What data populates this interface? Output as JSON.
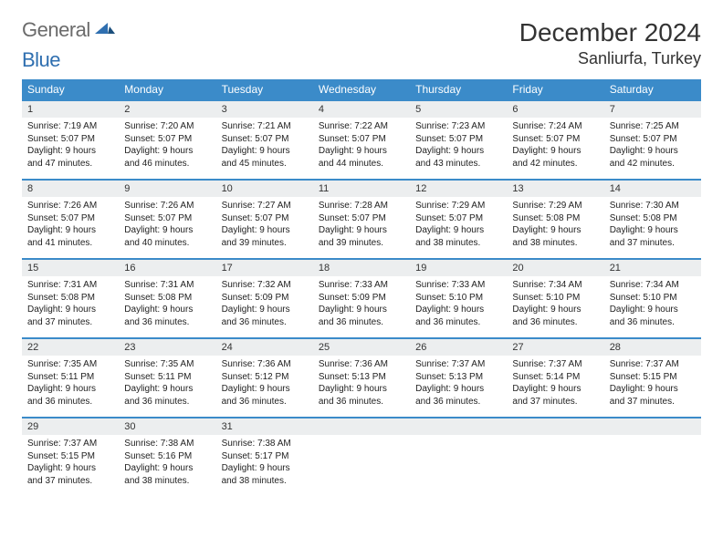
{
  "brand": {
    "general": "General",
    "blue": "Blue"
  },
  "title": "December 2024",
  "location": "Sanliurfa, Turkey",
  "weekday_headers": [
    "Sunday",
    "Monday",
    "Tuesday",
    "Wednesday",
    "Thursday",
    "Friday",
    "Saturday"
  ],
  "colors": {
    "header_bg": "#3b8bc9",
    "header_fg": "#ffffff",
    "daynum_bg": "#eceeef",
    "row_border": "#3b8bc9",
    "logo_gray": "#6b6b6b",
    "logo_blue": "#2f6fb0"
  },
  "weeks": [
    [
      {
        "n": "1",
        "sr": "7:19 AM",
        "ss": "5:07 PM",
        "dl": "9 hours and 47 minutes."
      },
      {
        "n": "2",
        "sr": "7:20 AM",
        "ss": "5:07 PM",
        "dl": "9 hours and 46 minutes."
      },
      {
        "n": "3",
        "sr": "7:21 AM",
        "ss": "5:07 PM",
        "dl": "9 hours and 45 minutes."
      },
      {
        "n": "4",
        "sr": "7:22 AM",
        "ss": "5:07 PM",
        "dl": "9 hours and 44 minutes."
      },
      {
        "n": "5",
        "sr": "7:23 AM",
        "ss": "5:07 PM",
        "dl": "9 hours and 43 minutes."
      },
      {
        "n": "6",
        "sr": "7:24 AM",
        "ss": "5:07 PM",
        "dl": "9 hours and 42 minutes."
      },
      {
        "n": "7",
        "sr": "7:25 AM",
        "ss": "5:07 PM",
        "dl": "9 hours and 42 minutes."
      }
    ],
    [
      {
        "n": "8",
        "sr": "7:26 AM",
        "ss": "5:07 PM",
        "dl": "9 hours and 41 minutes."
      },
      {
        "n": "9",
        "sr": "7:26 AM",
        "ss": "5:07 PM",
        "dl": "9 hours and 40 minutes."
      },
      {
        "n": "10",
        "sr": "7:27 AM",
        "ss": "5:07 PM",
        "dl": "9 hours and 39 minutes."
      },
      {
        "n": "11",
        "sr": "7:28 AM",
        "ss": "5:07 PM",
        "dl": "9 hours and 39 minutes."
      },
      {
        "n": "12",
        "sr": "7:29 AM",
        "ss": "5:07 PM",
        "dl": "9 hours and 38 minutes."
      },
      {
        "n": "13",
        "sr": "7:29 AM",
        "ss": "5:08 PM",
        "dl": "9 hours and 38 minutes."
      },
      {
        "n": "14",
        "sr": "7:30 AM",
        "ss": "5:08 PM",
        "dl": "9 hours and 37 minutes."
      }
    ],
    [
      {
        "n": "15",
        "sr": "7:31 AM",
        "ss": "5:08 PM",
        "dl": "9 hours and 37 minutes."
      },
      {
        "n": "16",
        "sr": "7:31 AM",
        "ss": "5:08 PM",
        "dl": "9 hours and 36 minutes."
      },
      {
        "n": "17",
        "sr": "7:32 AM",
        "ss": "5:09 PM",
        "dl": "9 hours and 36 minutes."
      },
      {
        "n": "18",
        "sr": "7:33 AM",
        "ss": "5:09 PM",
        "dl": "9 hours and 36 minutes."
      },
      {
        "n": "19",
        "sr": "7:33 AM",
        "ss": "5:10 PM",
        "dl": "9 hours and 36 minutes."
      },
      {
        "n": "20",
        "sr": "7:34 AM",
        "ss": "5:10 PM",
        "dl": "9 hours and 36 minutes."
      },
      {
        "n": "21",
        "sr": "7:34 AM",
        "ss": "5:10 PM",
        "dl": "9 hours and 36 minutes."
      }
    ],
    [
      {
        "n": "22",
        "sr": "7:35 AM",
        "ss": "5:11 PM",
        "dl": "9 hours and 36 minutes."
      },
      {
        "n": "23",
        "sr": "7:35 AM",
        "ss": "5:11 PM",
        "dl": "9 hours and 36 minutes."
      },
      {
        "n": "24",
        "sr": "7:36 AM",
        "ss": "5:12 PM",
        "dl": "9 hours and 36 minutes."
      },
      {
        "n": "25",
        "sr": "7:36 AM",
        "ss": "5:13 PM",
        "dl": "9 hours and 36 minutes."
      },
      {
        "n": "26",
        "sr": "7:37 AM",
        "ss": "5:13 PM",
        "dl": "9 hours and 36 minutes."
      },
      {
        "n": "27",
        "sr": "7:37 AM",
        "ss": "5:14 PM",
        "dl": "9 hours and 37 minutes."
      },
      {
        "n": "28",
        "sr": "7:37 AM",
        "ss": "5:15 PM",
        "dl": "9 hours and 37 minutes."
      }
    ],
    [
      {
        "n": "29",
        "sr": "7:37 AM",
        "ss": "5:15 PM",
        "dl": "9 hours and 37 minutes."
      },
      {
        "n": "30",
        "sr": "7:38 AM",
        "ss": "5:16 PM",
        "dl": "9 hours and 38 minutes."
      },
      {
        "n": "31",
        "sr": "7:38 AM",
        "ss": "5:17 PM",
        "dl": "9 hours and 38 minutes."
      },
      null,
      null,
      null,
      null
    ]
  ],
  "labels": {
    "sunrise": "Sunrise:",
    "sunset": "Sunset:",
    "daylight": "Daylight:"
  }
}
